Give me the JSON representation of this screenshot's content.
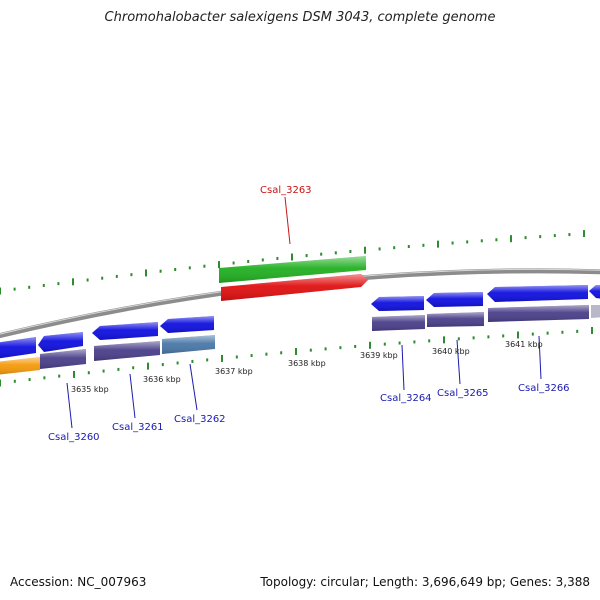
{
  "title": "Chromohalobacter salexigens DSM 3043, complete genome",
  "footer": {
    "accession": "Accession: NC_007963",
    "summary": "Topology: circular; Length: 3,696,649 bp; Genes: 3,388"
  },
  "colors": {
    "backbone": "#8c8c8c",
    "tick": "#2e8b2e",
    "forward_cds": "#1010e0",
    "forward_gene": "#4a3f8a",
    "reverse_cds": "#e01010",
    "reverse_gene": "#22b022",
    "orange_cds": "#f59a0a",
    "steel_gene": "#4a78a8",
    "label_blue": "#1a1ab0",
    "label_red": "#c81414"
  },
  "scale_labels": [
    "3635 kbp",
    "3636 kbp",
    "3637 kbp",
    "3638 kbp",
    "3639 kbp",
    "3640 kbp",
    "3641 kbp"
  ],
  "gene_labels": [
    {
      "text": "Csal_3260",
      "color": "label_blue"
    },
    {
      "text": "Csal_3261",
      "color": "label_blue"
    },
    {
      "text": "Csal_3262",
      "color": "label_blue"
    },
    {
      "text": "Csal_3263",
      "color": "label_red"
    },
    {
      "text": "Csal_3264",
      "color": "label_blue"
    },
    {
      "text": "Csal_3265",
      "color": "label_blue"
    },
    {
      "text": "Csal_3266",
      "color": "label_blue"
    }
  ]
}
